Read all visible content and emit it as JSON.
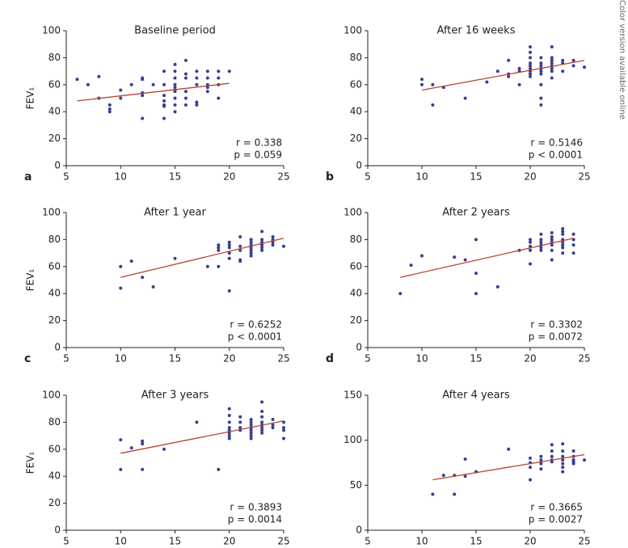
{
  "side_note": "Color version available online",
  "chart_data": [
    {
      "type": "scatter",
      "title": "Baseline period",
      "panel_label": "a",
      "y_label": "FEV₁",
      "annotations": [
        "r = 0.338",
        "p = 0.059"
      ],
      "color": "#3a3f8f",
      "fit_color": "#b5452f",
      "xlim": [
        5,
        25
      ],
      "xticks": [
        5,
        10,
        15,
        20,
        25
      ],
      "ylim": [
        0,
        100
      ],
      "yticks": [
        0,
        20,
        40,
        60,
        80,
        100
      ],
      "x": [
        6,
        7,
        8,
        8,
        9,
        9,
        9,
        10,
        10,
        11,
        12,
        12,
        12,
        12,
        12,
        13,
        14,
        14,
        14,
        14,
        14,
        14,
        14,
        15,
        15,
        15,
        15,
        15,
        15,
        15,
        15,
        15,
        15,
        16,
        16,
        16,
        16,
        16,
        16,
        17,
        17,
        17,
        17,
        17,
        18,
        18,
        18,
        18,
        18,
        19,
        19,
        19,
        19,
        20
      ],
      "y": [
        64,
        60,
        66,
        50,
        45,
        42,
        40,
        56,
        50,
        60,
        65,
        64,
        54,
        52,
        35,
        60,
        70,
        60,
        52,
        48,
        45,
        44,
        35,
        75,
        70,
        65,
        60,
        58,
        56,
        55,
        50,
        45,
        40,
        78,
        68,
        65,
        55,
        50,
        45,
        70,
        65,
        60,
        47,
        45,
        70,
        65,
        60,
        58,
        55,
        70,
        65,
        60,
        50,
        70
      ],
      "fit": {
        "x": [
          6,
          20
        ],
        "y": [
          48,
          61
        ]
      }
    },
    {
      "type": "scatter",
      "title": "After 16 weeks",
      "panel_label": "b",
      "annotations": [
        "r = 0.5146",
        "p < 0.0001"
      ],
      "color": "#3a3f8f",
      "fit_color": "#b5452f",
      "xlim": [
        5,
        25
      ],
      "xticks": [
        5,
        10,
        15,
        20,
        25
      ],
      "ylim": [
        0,
        100
      ],
      "yticks": [
        0,
        20,
        40,
        60,
        80,
        100
      ],
      "x": [
        10,
        10,
        11,
        11,
        12,
        14,
        16,
        17,
        18,
        18,
        18,
        19,
        19,
        19,
        20,
        20,
        20,
        20,
        20,
        20,
        20,
        20,
        20,
        21,
        21,
        21,
        21,
        21,
        21,
        21,
        21,
        21,
        22,
        22,
        22,
        22,
        22,
        22,
        22,
        22,
        23,
        23,
        23,
        24,
        24,
        25
      ],
      "y": [
        64,
        60,
        60,
        45,
        58,
        50,
        62,
        70,
        78,
        68,
        66,
        72,
        70,
        60,
        88,
        84,
        80,
        76,
        74,
        72,
        70,
        68,
        66,
        80,
        76,
        74,
        72,
        70,
        68,
        60,
        50,
        45,
        88,
        80,
        78,
        76,
        74,
        72,
        70,
        65,
        78,
        76,
        70,
        78,
        74,
        73
      ],
      "fit": {
        "x": [
          10,
          25
        ],
        "y": [
          56,
          78
        ]
      }
    },
    {
      "type": "scatter",
      "title": "After 1 year",
      "panel_label": "c",
      "y_label": "FEV₁",
      "annotations": [
        "r = 0.6252",
        "p < 0.0001"
      ],
      "color": "#3a3f8f",
      "fit_color": "#b5452f",
      "xlim": [
        5,
        25
      ],
      "xticks": [
        5,
        10,
        15,
        20,
        25
      ],
      "ylim": [
        0,
        100
      ],
      "yticks": [
        0,
        20,
        40,
        60,
        80,
        100
      ],
      "x": [
        10,
        10,
        11,
        12,
        13,
        15,
        18,
        19,
        19,
        19,
        19,
        20,
        20,
        20,
        20,
        20,
        20,
        21,
        21,
        21,
        21,
        21,
        22,
        22,
        22,
        22,
        22,
        22,
        22,
        23,
        23,
        23,
        23,
        23,
        23,
        24,
        24,
        24,
        24,
        25
      ],
      "y": [
        60,
        44,
        64,
        52,
        45,
        66,
        60,
        76,
        74,
        72,
        60,
        78,
        76,
        74,
        70,
        66,
        42,
        82,
        75,
        72,
        65,
        64,
        80,
        78,
        76,
        74,
        72,
        70,
        68,
        86,
        80,
        78,
        76,
        74,
        72,
        82,
        80,
        78,
        76,
        75
      ],
      "fit": {
        "x": [
          10,
          25
        ],
        "y": [
          52,
          81
        ]
      }
    },
    {
      "type": "scatter",
      "title": "After 2 years",
      "panel_label": "d",
      "annotations": [
        "r = 0.3302",
        "p = 0.0072"
      ],
      "color": "#3a3f8f",
      "fit_color": "#b5452f",
      "xlim": [
        5,
        25
      ],
      "xticks": [
        5,
        10,
        15,
        20,
        25
      ],
      "ylim": [
        0,
        100
      ],
      "yticks": [
        0,
        20,
        40,
        60,
        80,
        100
      ],
      "x": [
        8,
        9,
        10,
        13,
        14,
        15,
        15,
        15,
        17,
        19,
        20,
        20,
        20,
        20,
        20,
        21,
        21,
        21,
        21,
        21,
        21,
        22,
        22,
        22,
        22,
        22,
        22,
        22,
        23,
        23,
        23,
        23,
        23,
        23,
        23,
        23,
        24,
        24,
        24,
        24
      ],
      "y": [
        40,
        61,
        68,
        67,
        65,
        80,
        55,
        40,
        45,
        72,
        80,
        78,
        75,
        72,
        62,
        84,
        80,
        78,
        76,
        74,
        72,
        85,
        82,
        80,
        78,
        76,
        72,
        65,
        88,
        86,
        84,
        80,
        78,
        76,
        74,
        70,
        84,
        80,
        76,
        70
      ],
      "fit": {
        "x": [
          8,
          24
        ],
        "y": [
          52,
          81
        ]
      }
    },
    {
      "type": "scatter",
      "title": "After 3 years",
      "y_label": "FEV₁",
      "annotations": [
        "r = 0.3893",
        "p = 0.0014"
      ],
      "color": "#3a3f8f",
      "fit_color": "#b5452f",
      "xlim": [
        5,
        25
      ],
      "xticks": [
        5,
        10,
        15,
        20,
        25
      ],
      "ylim": [
        0,
        100
      ],
      "yticks": [
        0,
        20,
        40,
        60,
        80,
        100
      ],
      "x": [
        10,
        10,
        11,
        12,
        12,
        12,
        14,
        17,
        19,
        20,
        20,
        20,
        20,
        20,
        20,
        20,
        20,
        21,
        21,
        21,
        21,
        22,
        22,
        22,
        22,
        22,
        22,
        22,
        22,
        23,
        23,
        23,
        23,
        23,
        23,
        23,
        23,
        24,
        24,
        24,
        25,
        25,
        25,
        25
      ],
      "y": [
        67,
        45,
        61,
        66,
        64,
        45,
        60,
        80,
        45,
        90,
        85,
        80,
        76,
        74,
        72,
        70,
        68,
        84,
        80,
        76,
        74,
        82,
        80,
        78,
        76,
        74,
        72,
        70,
        68,
        95,
        88,
        84,
        80,
        78,
        76,
        74,
        72,
        82,
        78,
        76,
        80,
        76,
        74,
        68
      ],
      "fit": {
        "x": [
          10,
          25
        ],
        "y": [
          57,
          81
        ]
      }
    },
    {
      "type": "scatter",
      "title": "After 4 years",
      "annotations": [
        "r = 0.3665",
        "p = 0.0027"
      ],
      "color": "#3a3f8f",
      "fit_color": "#b5452f",
      "xlim": [
        5,
        25
      ],
      "xticks": [
        5,
        10,
        15,
        20,
        25
      ],
      "ylim": [
        0,
        150
      ],
      "yticks": [
        0,
        50,
        100,
        150
      ],
      "x": [
        11,
        12,
        13,
        13,
        14,
        14,
        15,
        18,
        20,
        20,
        20,
        20,
        21,
        21,
        21,
        21,
        22,
        22,
        22,
        22,
        22,
        23,
        23,
        23,
        23,
        23,
        23,
        23,
        24,
        24,
        24,
        24,
        24,
        25
      ],
      "y": [
        40,
        61,
        61,
        40,
        79,
        60,
        65,
        90,
        80,
        75,
        70,
        56,
        82,
        78,
        74,
        68,
        95,
        88,
        82,
        78,
        76,
        96,
        88,
        82,
        78,
        74,
        70,
        65,
        88,
        82,
        78,
        76,
        74,
        78
      ],
      "fit": {
        "x": [
          11,
          25
        ],
        "y": [
          56,
          84
        ]
      }
    }
  ]
}
